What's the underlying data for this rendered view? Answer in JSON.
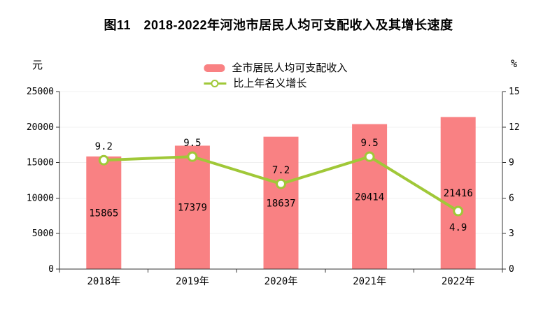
{
  "chart_data": {
    "type": "bar",
    "title": "图11　2018-2022年河池市居民人均可支配收入及其增长速度",
    "categories": [
      "2018年",
      "2019年",
      "2020年",
      "2021年",
      "2022年"
    ],
    "series": [
      {
        "name": "全市居民人均可支配收入",
        "type": "bar",
        "axis": "left",
        "values": [
          15865,
          17379,
          18637,
          20414,
          21416
        ],
        "color": "#F98183"
      },
      {
        "name": "比上年名义增长",
        "type": "line",
        "axis": "right",
        "values": [
          9.2,
          9.5,
          7.2,
          9.5,
          4.9
        ],
        "color": "#A0C838",
        "marker": "white-circle",
        "value_label_position": [
          "above",
          "above",
          "above",
          "above",
          "below"
        ]
      }
    ],
    "left_axis": {
      "unit": "元",
      "min": 0,
      "max": 25000,
      "step": 5000,
      "ticks": [
        0,
        5000,
        10000,
        15000,
        20000,
        25000
      ]
    },
    "right_axis": {
      "unit": "%",
      "min": 0,
      "max": 15,
      "step": 3,
      "ticks": [
        0,
        3,
        6,
        9,
        12,
        15
      ]
    },
    "grid": "horizontal-light",
    "grid_color": "#F0F0F0",
    "axis_color": "#333333",
    "legend_position": "top-center"
  }
}
